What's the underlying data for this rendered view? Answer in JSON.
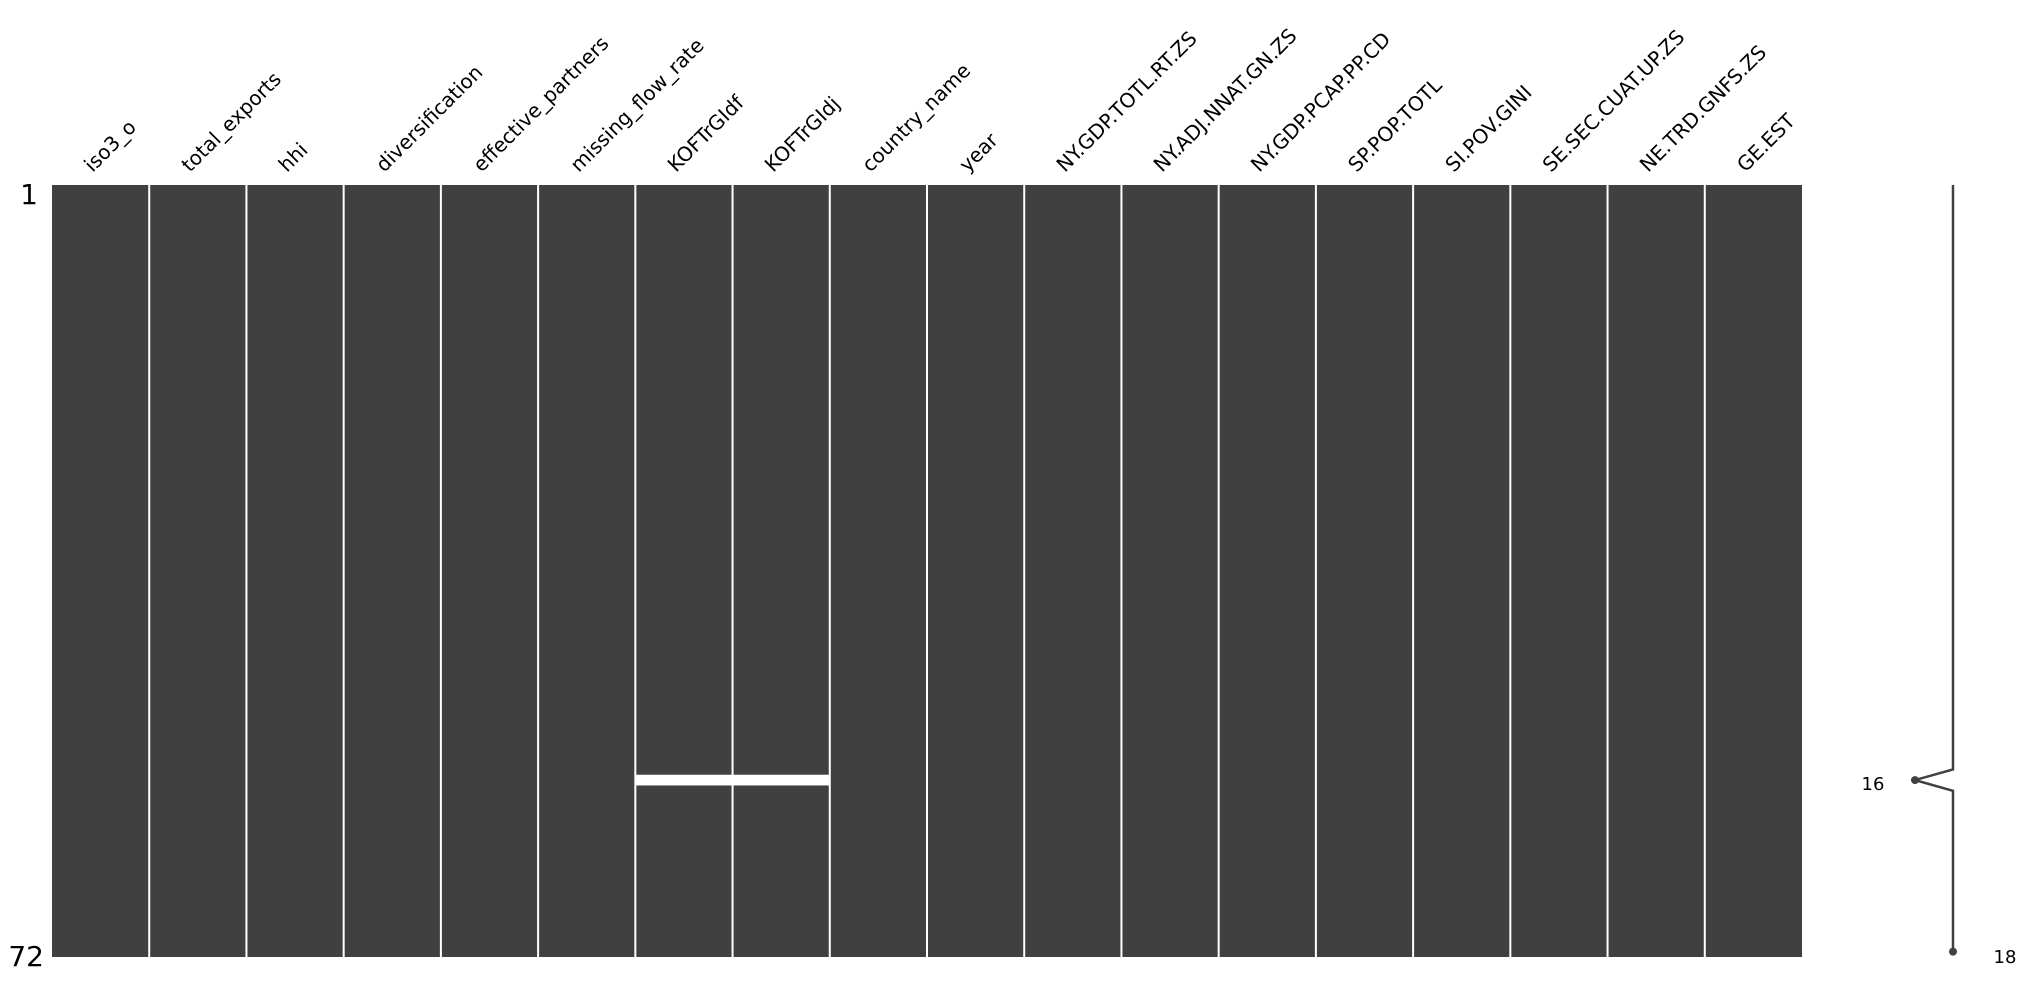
{
  "chart_data": {
    "type": "heatmap",
    "subtype": "missingness-matrix",
    "columns": [
      "iso3_o",
      "total_exports",
      "hhi",
      "diversification",
      "effective_partners",
      "missing_flow_rate",
      "KOFTrGIdf",
      "KOFTrGIdj",
      "country_name",
      "year",
      "NY.GDP.TOTL.RT.ZS",
      "NY.ADJ.NNAT.GN.ZS",
      "NY.GDP.PCAP.PP.CD",
      "SP.POP.TOTL",
      "SI.POV.GINI",
      "SE.SEC.CUAT.UP.ZS",
      "NE.TRD.GNFS.ZS",
      "GE.EST"
    ],
    "n_rows": 72,
    "row_tick_labels": [
      "1",
      "72"
    ],
    "missing_cells": [
      {
        "row": 56,
        "column": "KOFTrGIdf"
      },
      {
        "row": 56,
        "column": "KOFTrGIdj"
      }
    ],
    "sparkline": {
      "min_label": "16",
      "max_label": "18",
      "min_value": 16,
      "max_value": 18,
      "min_row": 56,
      "max_row": 72
    },
    "colors": {
      "present": "#404040",
      "missing": "#ffffff",
      "sparkline": "#404040"
    }
  }
}
